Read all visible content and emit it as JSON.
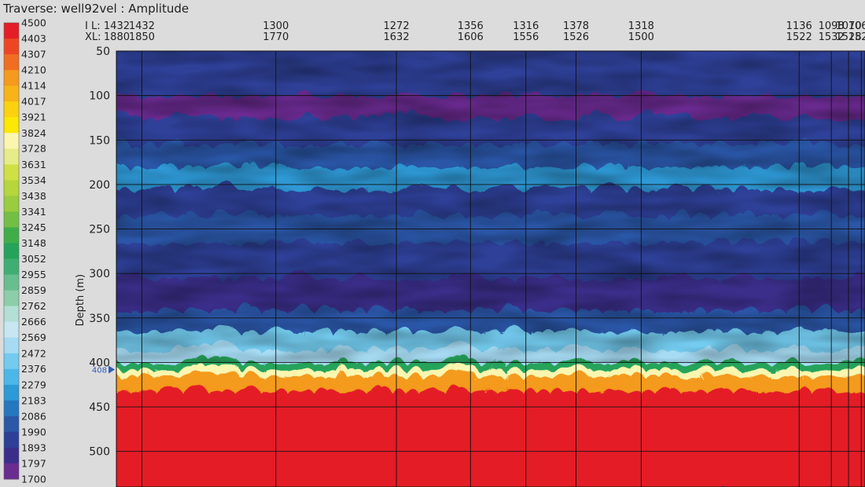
{
  "title": "Traverse: well92vel : Amplitude",
  "chart_data": {
    "type": "heatmap",
    "ylabel": "Depth (m)",
    "ylim": [
      50,
      540
    ],
    "y_ticks": [
      50,
      100,
      150,
      200,
      250,
      300,
      350,
      400,
      450,
      500
    ],
    "row_labels": [
      "I L:",
      "XL:"
    ],
    "traces": [
      {
        "il": "1432",
        "xl": "1880"
      },
      {
        "il": "1432",
        "xl": "1850"
      },
      {
        "il": "1300",
        "xl": "1770"
      },
      {
        "il": "1272",
        "xl": "1632"
      },
      {
        "il": "1356",
        "xl": "1606"
      },
      {
        "il": "1316",
        "xl": "1556"
      },
      {
        "il": "1378",
        "xl": "1526"
      },
      {
        "il": "1318",
        "xl": "1500"
      },
      {
        "il": "1136",
        "xl": "1522"
      },
      {
        "il": "1098",
        "xl": "1532"
      },
      {
        "il": "1070",
        "xl": "1528"
      },
      {
        "il": "1066",
        "xl": "1528"
      }
    ],
    "horizon": {
      "label": "408",
      "depth": 408
    },
    "colorbar": {
      "min": 1700,
      "max": 4500,
      "levels": [
        4500,
        4403,
        4307,
        4210,
        4114,
        4017,
        3921,
        3824,
        3728,
        3631,
        3534,
        3438,
        3341,
        3245,
        3148,
        3052,
        2955,
        2859,
        2762,
        2666,
        2569,
        2472,
        2376,
        2279,
        2183,
        2086,
        1990,
        1893,
        1797,
        1700
      ],
      "colors": [
        "#e41e26",
        "#ee4623",
        "#f06d21",
        "#f49a1e",
        "#f7b317",
        "#fbd20d",
        "#fde704",
        "#faf6b0",
        "#e6ec88",
        "#cfe044",
        "#b6d63c",
        "#9bcc3f",
        "#73bf44",
        "#3fae49",
        "#25a35a",
        "#3fae72",
        "#67be8f",
        "#8ccdaa",
        "#b3dfd4",
        "#c8e6f1",
        "#a6dbf3",
        "#73cbef",
        "#4db6e9",
        "#2d99d6",
        "#2577bf",
        "#2b57a7",
        "#2e3f98",
        "#3b2e8b",
        "#6a2c90",
        "#92278f"
      ]
    },
    "velocity_profile": [
      {
        "depth": 50,
        "value": 2000
      },
      {
        "depth": 95,
        "value": 1840
      },
      {
        "depth": 120,
        "value": 2020
      },
      {
        "depth": 150,
        "value": 2060
      },
      {
        "depth": 175,
        "value": 2250
      },
      {
        "depth": 200,
        "value": 2010
      },
      {
        "depth": 230,
        "value": 2050
      },
      {
        "depth": 260,
        "value": 2010
      },
      {
        "depth": 300,
        "value": 1870
      },
      {
        "depth": 335,
        "value": 2120
      },
      {
        "depth": 360,
        "value": 2480
      },
      {
        "depth": 380,
        "value": 2600
      },
      {
        "depth": 395,
        "value": 3100
      },
      {
        "depth": 403,
        "value": 3850
      },
      {
        "depth": 410,
        "value": 4250
      },
      {
        "depth": 425,
        "value": 4500
      },
      {
        "depth": 540,
        "value": 4500
      }
    ]
  }
}
